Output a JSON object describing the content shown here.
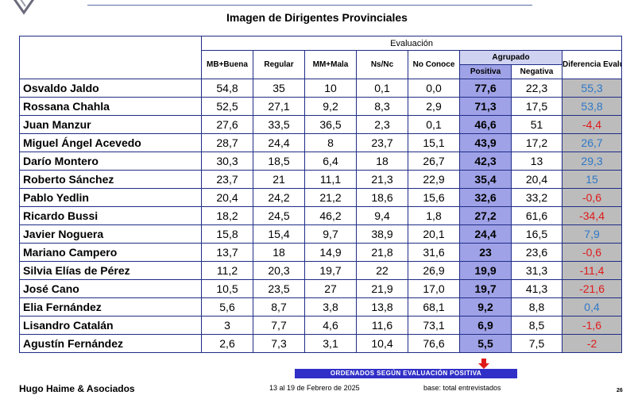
{
  "title": "Imagen de Dirigentes Provinciales",
  "header": {
    "evaluacion": "Evaluación",
    "agrupado": "Agrupado",
    "diferencia": "Diferencia Evaluación Pos - Neg",
    "cols": [
      "MB+Buena",
      "Regular",
      "MM+Mala",
      "Ns/Nc",
      "No Conoce"
    ],
    "positiva": "Positiva",
    "negativa": "Negativa"
  },
  "rows": [
    {
      "name": "Osvaldo Jaldo",
      "v": [
        "54,8",
        "35",
        "10",
        "0,1",
        "0,0"
      ],
      "pos": "77,6",
      "neg": "22,3",
      "dif": "55,3",
      "sign": "pos"
    },
    {
      "name": "Rossana Chahla",
      "v": [
        "52,5",
        "27,1",
        "9,2",
        "8,3",
        "2,9"
      ],
      "pos": "71,3",
      "neg": "17,5",
      "dif": "53,8",
      "sign": "pos"
    },
    {
      "name": "Juan Manzur",
      "v": [
        "27,6",
        "33,5",
        "36,5",
        "2,3",
        "0,1"
      ],
      "pos": "46,6",
      "neg": "51",
      "dif": "-4,4",
      "sign": "neg"
    },
    {
      "name": "Miguel Ángel Acevedo",
      "v": [
        "28,7",
        "24,4",
        "8",
        "23,7",
        "15,1"
      ],
      "pos": "43,9",
      "neg": "17,2",
      "dif": "26,7",
      "sign": "pos"
    },
    {
      "name": "Darío Montero",
      "v": [
        "30,3",
        "18,5",
        "6,4",
        "18",
        "26,7"
      ],
      "pos": "42,3",
      "neg": "13",
      "dif": "29,3",
      "sign": "pos"
    },
    {
      "name": "Roberto Sánchez",
      "v": [
        "23,7",
        "21",
        "11,1",
        "21,3",
        "22,9"
      ],
      "pos": "35,4",
      "neg": "20,4",
      "dif": "15",
      "sign": "pos"
    },
    {
      "name": "Pablo Yedlin",
      "v": [
        "20,4",
        "24,2",
        "21,2",
        "18,6",
        "15,6"
      ],
      "pos": "32,6",
      "neg": "33,2",
      "dif": "-0,6",
      "sign": "neg"
    },
    {
      "name": "Ricardo Bussi",
      "v": [
        "18,2",
        "24,5",
        "46,2",
        "9,4",
        "1,8"
      ],
      "pos": "27,2",
      "neg": "61,6",
      "dif": "-34,4",
      "sign": "neg"
    },
    {
      "name": "Javier Noguera",
      "v": [
        "15,8",
        "15,4",
        "9,7",
        "38,9",
        "20,1"
      ],
      "pos": "24,4",
      "neg": "16,5",
      "dif": "7,9",
      "sign": "pos"
    },
    {
      "name": "Mariano Campero",
      "v": [
        "13,7",
        "18",
        "14,9",
        "21,8",
        "31,6"
      ],
      "pos": "23",
      "neg": "23,6",
      "dif": "-0,6",
      "sign": "neg"
    },
    {
      "name": "Silvia Elías de Pérez",
      "v": [
        "11,2",
        "20,3",
        "19,7",
        "22",
        "26,9"
      ],
      "pos": "19,9",
      "neg": "31,3",
      "dif": "-11,4",
      "sign": "neg"
    },
    {
      "name": "José Cano",
      "v": [
        "10,5",
        "23,5",
        "27",
        "21,9",
        "17,0"
      ],
      "pos": "19,7",
      "neg": "41,3",
      "dif": "-21,6",
      "sign": "neg"
    },
    {
      "name": "Elia Fernández",
      "v": [
        "5,6",
        "8,7",
        "3,8",
        "13,8",
        "68,1"
      ],
      "pos": "9,2",
      "neg": "8,8",
      "dif": "0,4",
      "sign": "pos"
    },
    {
      "name": "Lisandro Catalán",
      "v": [
        "3",
        "7,7",
        "4,6",
        "11,6",
        "73,1"
      ],
      "pos": "6,9",
      "neg": "8,5",
      "dif": "-1,6",
      "sign": "neg"
    },
    {
      "name": "Agustín Fernández",
      "v": [
        "2,6",
        "7,3",
        "3,1",
        "10,4",
        "76,6"
      ],
      "pos": "5,5",
      "neg": "7,5",
      "dif": "-2",
      "sign": "neg"
    }
  ],
  "footer": {
    "banner": "ORDENADOS SEGÚN  EVALUACIÓN  POSITIVA",
    "brand": "Hugo Haime & Asociados",
    "dates": "13 al 19 de Febrero de 2025",
    "base": "base: total entrevistados",
    "page": "26"
  },
  "colors": {
    "positive_text": "#2e78c7",
    "negative_text": "#e01a1a",
    "positiva_fill": "#9fa2e6",
    "agrupado_fill": "#cfd2f0",
    "diferencia_fill": "#bcbcbc",
    "border": "#1f2c86",
    "banner": "#3030c8"
  }
}
